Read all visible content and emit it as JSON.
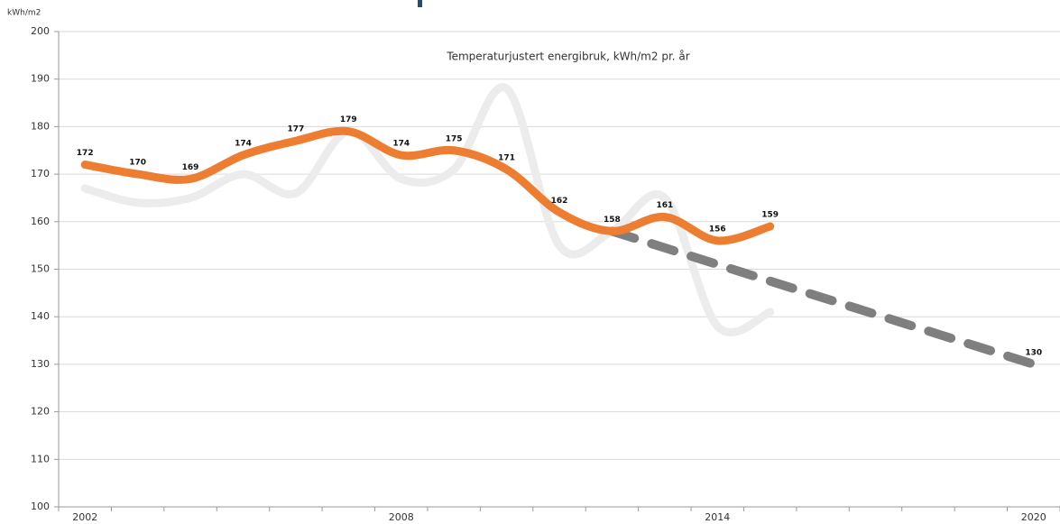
{
  "chart_data": {
    "type": "line",
    "title": "Temperaturjustert energibruk, kWh/m2 pr. år",
    "y_label": "kWh/m2",
    "categories": [
      "2002",
      null,
      null,
      null,
      null,
      null,
      "2008",
      null,
      null,
      null,
      null,
      null,
      "2014",
      null,
      null,
      null,
      null,
      null,
      "2020"
    ],
    "series": [
      {
        "color": "#ececec",
        "smooth": true,
        "dashed": false,
        "data_labels": "none",
        "values": [
          167,
          164,
          165,
          170,
          166,
          179,
          169,
          171,
          188,
          155,
          158,
          165,
          138,
          141,
          null,
          null,
          null,
          null,
          null
        ]
      },
      {
        "color": "#7f7f7f",
        "smooth": false,
        "dashed": true,
        "data_labels": "last",
        "values": [
          null,
          null,
          null,
          null,
          null,
          null,
          null,
          null,
          null,
          null,
          158,
          154.5,
          151,
          147.5,
          144,
          140.5,
          137,
          133.5,
          130
        ]
      },
      {
        "color": "#ed7d31",
        "smooth": true,
        "dashed": false,
        "data_labels": "all",
        "values": [
          172,
          170,
          169,
          174,
          177,
          179,
          174,
          175,
          171,
          162,
          158,
          161,
          156,
          159,
          null,
          null,
          null,
          null,
          null
        ]
      }
    ],
    "ylim": [
      100,
      200
    ],
    "yticks": [
      100,
      110,
      120,
      130,
      140,
      150,
      160,
      170,
      180,
      190,
      200
    ],
    "grid": true
  }
}
